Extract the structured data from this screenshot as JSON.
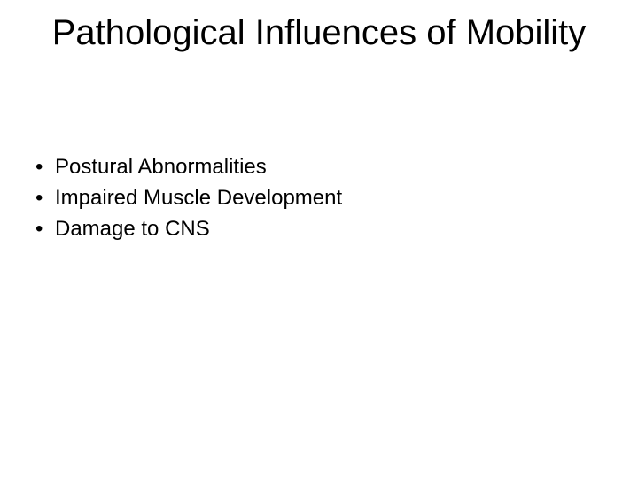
{
  "slide": {
    "title": "Pathological Influences of Mobility",
    "bullets": [
      "Postural Abnormalities",
      "Impaired Muscle Development",
      "Damage to CNS"
    ],
    "colors": {
      "background": "#ffffff",
      "text": "#000000"
    },
    "typography": {
      "title_fontsize": 40,
      "body_fontsize": 24,
      "font_family": "Arial"
    }
  }
}
